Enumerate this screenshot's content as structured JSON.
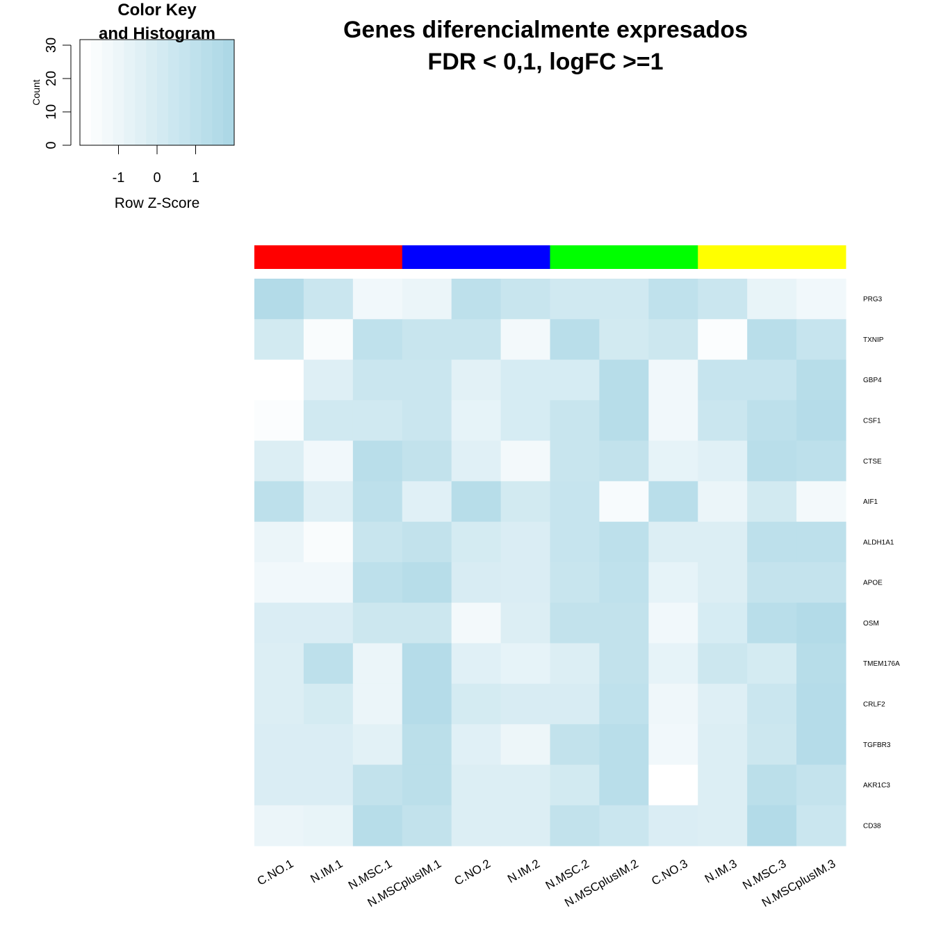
{
  "chart_data": {
    "type": "heatmap",
    "title": "Genes diferencialmente expresados",
    "subtitle": "FDR < 0,1, logFC >=1",
    "columns": [
      "C.NO.1",
      "N.IM.1",
      "N.MSC.1",
      "N.MSCplusIM.1",
      "C.NO.2",
      "N.IM.2",
      "N.MSC.2",
      "N.MSCplusIM.2",
      "C.NO.3",
      "N.IM.3",
      "N.MSC.3",
      "N.MSCplusIM.3"
    ],
    "rows": [
      "PRG3",
      "TXNIP",
      "GBP4",
      "CSF1",
      "CTSE",
      "AIF1",
      "ALDH1A1",
      "APOE",
      "OSM",
      "TMEM176A",
      "CRLF2",
      "TGFBR3",
      "AKR1C3",
      "CD38"
    ],
    "z_scores": [
      [
        1.7,
        0.6,
        -1.3,
        -1.0,
        1.2,
        0.7,
        0.3,
        0.3,
        1.1,
        0.6,
        -0.9,
        -1.3
      ],
      [
        0.2,
        -1.7,
        1.1,
        0.7,
        0.7,
        -1.4,
        1.4,
        0.2,
        0.5,
        -1.8,
        1.4,
        0.8
      ],
      [
        -2.0,
        -0.4,
        0.6,
        0.6,
        -0.6,
        0.0,
        0.0,
        1.5,
        -1.3,
        0.8,
        0.8,
        1.5
      ],
      [
        -1.8,
        0.3,
        0.3,
        0.6,
        -0.8,
        0.0,
        0.7,
        1.5,
        -1.3,
        0.6,
        1.2,
        1.6
      ],
      [
        -0.3,
        -1.3,
        1.4,
        1.0,
        -0.5,
        -1.4,
        0.7,
        1.0,
        -0.8,
        -0.5,
        1.4,
        1.2
      ],
      [
        1.2,
        -0.4,
        1.2,
        -0.5,
        1.5,
        0.2,
        0.8,
        -1.6,
        1.4,
        -1.0,
        0.2,
        -1.4
      ],
      [
        -1.0,
        -1.7,
        0.7,
        1.0,
        0.1,
        -0.2,
        0.8,
        1.2,
        -0.3,
        -0.3,
        1.2,
        1.2
      ],
      [
        -1.3,
        -1.3,
        1.2,
        1.5,
        -0.1,
        -0.2,
        0.7,
        1.1,
        -0.8,
        -0.3,
        0.9,
        0.9
      ],
      [
        -0.2,
        -0.2,
        0.5,
        0.5,
        -1.4,
        -0.3,
        1.0,
        1.0,
        -1.3,
        0.0,
        1.4,
        1.7
      ],
      [
        -0.3,
        1.2,
        -1.0,
        1.6,
        -0.5,
        -0.8,
        -0.3,
        1.0,
        -0.8,
        0.5,
        0.1,
        1.5
      ],
      [
        -0.3,
        0.1,
        -1.0,
        1.6,
        0.1,
        -0.1,
        -0.1,
        1.1,
        -1.2,
        -0.4,
        0.6,
        1.6
      ],
      [
        -0.2,
        -0.2,
        -0.6,
        1.3,
        -0.5,
        -1.1,
        1.0,
        1.4,
        -1.3,
        -0.3,
        0.5,
        1.6
      ],
      [
        -0.2,
        -0.2,
        1.0,
        1.3,
        -0.3,
        -0.3,
        0.2,
        1.4,
        -2.0,
        -0.3,
        1.3,
        0.9
      ],
      [
        -1.0,
        -0.9,
        1.5,
        1.0,
        -0.3,
        -0.3,
        1.0,
        0.6,
        -0.2,
        -0.3,
        1.7,
        0.6
      ]
    ],
    "column_side_colors": [
      {
        "color": "#ff0000",
        "columns": 3
      },
      {
        "color": "#0000ff",
        "columns": 3
      },
      {
        "color": "#00ff00",
        "columns": 3
      },
      {
        "color": "#ffff00",
        "columns": 3
      }
    ],
    "color_scale": {
      "low": "#ffffff",
      "high": "#add8e6",
      "zlim": [
        -2,
        2
      ]
    },
    "color_key": {
      "title_line1": "Color Key",
      "title_line2": "and Histogram",
      "xlabel": "Row Z-Score",
      "ylabel": "Count",
      "x_ticks": [
        "-1",
        "0",
        "1"
      ],
      "y_ticks": [
        "0",
        "10",
        "20",
        "30"
      ]
    }
  }
}
